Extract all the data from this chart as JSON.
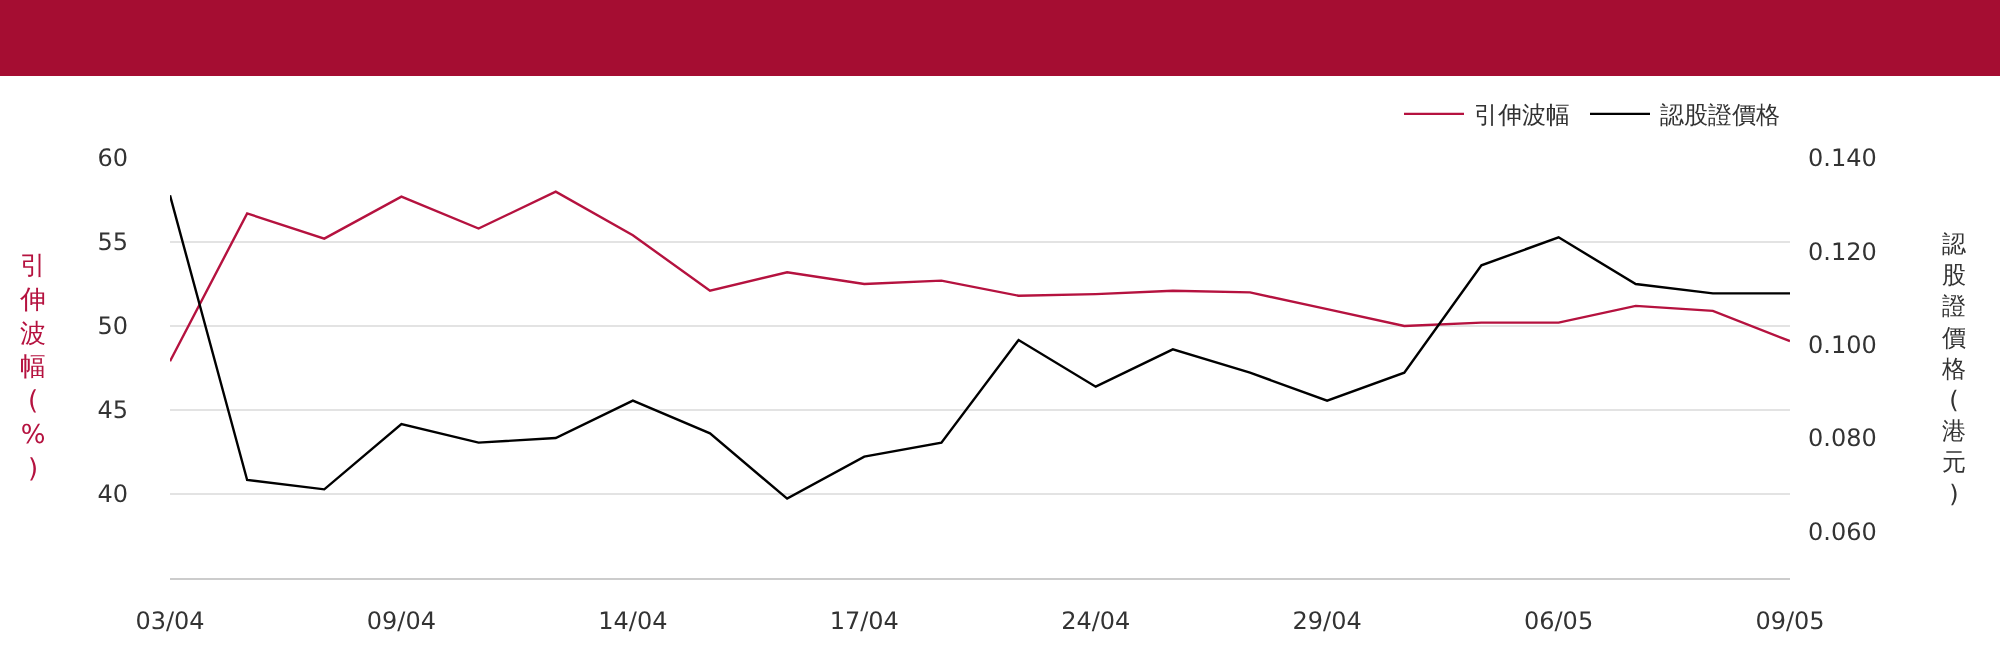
{
  "chart_data": {
    "type": "line",
    "categories": [
      "03/04",
      null,
      null,
      "09/04",
      null,
      null,
      "14/04",
      null,
      null,
      "17/04",
      null,
      null,
      "24/04",
      null,
      null,
      "29/04",
      null,
      null,
      "06/05",
      null,
      null,
      "09/05"
    ],
    "series": [
      {
        "name": "引伸波幅",
        "color": "#b5123f",
        "values": [
          47.9,
          56.7,
          55.2,
          57.7,
          55.8,
          58.0,
          55.4,
          52.1,
          53.2,
          52.5,
          52.7,
          51.8,
          51.9,
          52.1,
          52.0,
          51.0,
          50.0,
          50.2,
          50.2,
          51.2,
          50.9,
          49.1
        ]
      },
      {
        "name": "認股證價格",
        "color": "#000000",
        "axis": "y2",
        "values": [
          0.132,
          0.071,
          0.069,
          0.083,
          0.079,
          0.08,
          0.088,
          0.081,
          0.067,
          0.076,
          0.079,
          0.101,
          0.091,
          0.099,
          0.094,
          0.088,
          0.094,
          0.117,
          0.123,
          0.113,
          0.111,
          0.111
        ]
      }
    ],
    "ylabel": "引伸波幅(%)",
    "y2label": "認股證價格(港元)",
    "ylim": [
      35,
      60
    ],
    "yticks": [
      40,
      45,
      50,
      55,
      60
    ],
    "y2lim": [
      0.05,
      0.14
    ],
    "y2ticks": [
      {
        "value": 0.06,
        "label": "0.060"
      },
      {
        "value": 0.08,
        "label": "0.080"
      },
      {
        "value": 0.1,
        "label": "0.100"
      },
      {
        "value": 0.12,
        "label": "0.120"
      },
      {
        "value": 0.14,
        "label": "0.140"
      }
    ],
    "grid": "y",
    "legend": "top right",
    "marker": "none",
    "line_style": "solid"
  }
}
